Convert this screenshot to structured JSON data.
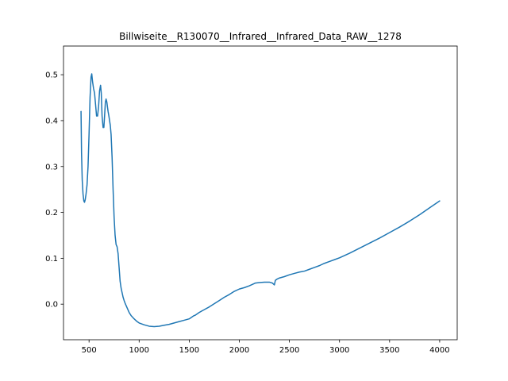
{
  "chart_data": {
    "type": "line",
    "title": "Billwiseite__R130070__Infrared__Infrared_Data_RAW__1278",
    "xlabel": "",
    "ylabel": "",
    "xlim": [
      245,
      4175
    ],
    "ylim": [
      -0.0775,
      0.5625
    ],
    "x_ticks": [
      500,
      1000,
      1500,
      2000,
      2500,
      3000,
      3500,
      4000
    ],
    "y_ticks": [
      0.0,
      0.1,
      0.2,
      0.3,
      0.4,
      0.5
    ],
    "x_tick_labels": [
      "500",
      "1000",
      "1500",
      "2000",
      "2500",
      "3000",
      "3500",
      "4000"
    ],
    "y_tick_labels": [
      "0.0",
      "0.1",
      "0.2",
      "0.3",
      "0.4",
      "0.5"
    ],
    "grid": false,
    "line_color": "#1f77b4",
    "series": [
      {
        "x": [
          420,
          425,
          432,
          440,
          448,
          455,
          462,
          470,
          480,
          490,
          500,
          510,
          520,
          527,
          535,
          545,
          555,
          565,
          575,
          585,
          595,
          605,
          615,
          622,
          630,
          640,
          648,
          655,
          663,
          670,
          678,
          685,
          690,
          698,
          705,
          712,
          720,
          730,
          740,
          750,
          760,
          770,
          780,
          790,
          800,
          810,
          820,
          830,
          840,
          850,
          860,
          880,
          900,
          920,
          950,
          980,
          1000,
          1050,
          1100,
          1150,
          1200,
          1250,
          1300,
          1350,
          1400,
          1450,
          1500,
          1520,
          1540,
          1560,
          1580,
          1600,
          1650,
          1700,
          1750,
          1800,
          1850,
          1900,
          1950,
          2000,
          2050,
          2100,
          2150,
          2160,
          2200,
          2250,
          2300,
          2330,
          2350,
          2360,
          2380,
          2400,
          2450,
          2500,
          2550,
          2600,
          2650,
          2700,
          2750,
          2800,
          2850,
          2900,
          2950,
          3000,
          3100,
          3200,
          3300,
          3400,
          3500,
          3600,
          3700,
          3800,
          3900,
          4000
        ],
        "values": [
          0.42,
          0.33,
          0.27,
          0.24,
          0.225,
          0.222,
          0.228,
          0.24,
          0.26,
          0.3,
          0.37,
          0.45,
          0.495,
          0.502,
          0.485,
          0.47,
          0.46,
          0.435,
          0.41,
          0.41,
          0.43,
          0.465,
          0.477,
          0.46,
          0.41,
          0.385,
          0.385,
          0.41,
          0.44,
          0.447,
          0.44,
          0.428,
          0.42,
          0.41,
          0.4,
          0.39,
          0.37,
          0.32,
          0.25,
          0.19,
          0.15,
          0.13,
          0.125,
          0.11,
          0.08,
          0.05,
          0.035,
          0.025,
          0.015,
          0.008,
          0.002,
          -0.008,
          -0.018,
          -0.025,
          -0.032,
          -0.038,
          -0.041,
          -0.045,
          -0.048,
          -0.049,
          -0.048,
          -0.046,
          -0.044,
          -0.041,
          -0.038,
          -0.035,
          -0.032,
          -0.029,
          -0.026,
          -0.024,
          -0.021,
          -0.018,
          -0.012,
          -0.006,
          0.001,
          0.008,
          0.015,
          0.021,
          0.028,
          0.033,
          0.036,
          0.04,
          0.045,
          0.046,
          0.047,
          0.048,
          0.048,
          0.046,
          0.042,
          0.052,
          0.055,
          0.057,
          0.06,
          0.064,
          0.067,
          0.07,
          0.072,
          0.076,
          0.08,
          0.084,
          0.089,
          0.093,
          0.097,
          0.101,
          0.111,
          0.122,
          0.133,
          0.144,
          0.156,
          0.168,
          0.181,
          0.195,
          0.21,
          0.225
        ]
      }
    ]
  }
}
